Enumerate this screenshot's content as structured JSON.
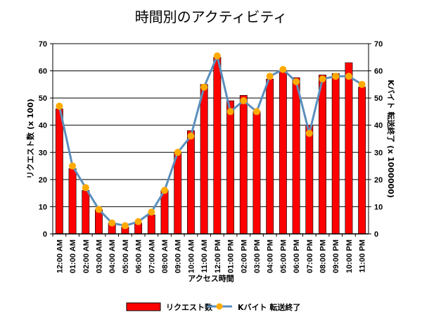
{
  "chart_data": {
    "type": "bar",
    "title": "時間別のアクティビティ",
    "xlabel": "アクセス時間",
    "ylabel": "リクエスト数 (x 100)",
    "y2label": "Kバイト 転送終了 (x 1000000)",
    "ylim": [
      0,
      70
    ],
    "y2lim": [
      0,
      70
    ],
    "yticks": [
      0,
      10,
      20,
      30,
      40,
      50,
      60,
      70
    ],
    "grid": true,
    "legend_position": "bottom",
    "categories": [
      "12:00 AM",
      "01:00 AM",
      "02:00 AM",
      "03:00 AM",
      "04:00 AM",
      "05:00 AM",
      "06:00 AM",
      "07:00 AM",
      "08:00 AM",
      "09:00 AM",
      "10:00 AM",
      "11:00 AM",
      "12:00 PM",
      "01:00 PM",
      "02:00 PM",
      "03:00 PM",
      "04:00 PM",
      "05:00 PM",
      "06:00 PM",
      "07:00 PM",
      "08:00 PM",
      "09:00 PM",
      "10:00 PM",
      "11:00 PM"
    ],
    "series": [
      {
        "name": "リクエスト数",
        "type": "bar",
        "axis": "left",
        "color": "#ff0000",
        "values": [
          46,
          24,
          16,
          9,
          4,
          2.5,
          4,
          7,
          16,
          30,
          38,
          55,
          65,
          49,
          51,
          45,
          57,
          60,
          57.5,
          40,
          58.5,
          59,
          63,
          54
        ]
      },
      {
        "name": "Kバイト 転送終了",
        "type": "line",
        "axis": "right",
        "color": "#5b8fbd",
        "marker_color": "#ffaa00",
        "values": [
          47,
          25,
          17,
          9,
          4,
          3,
          4.5,
          8,
          16,
          30,
          36,
          54,
          65.5,
          45,
          49,
          45,
          58,
          60.5,
          56,
          37,
          57,
          58,
          58,
          55
        ]
      }
    ]
  }
}
